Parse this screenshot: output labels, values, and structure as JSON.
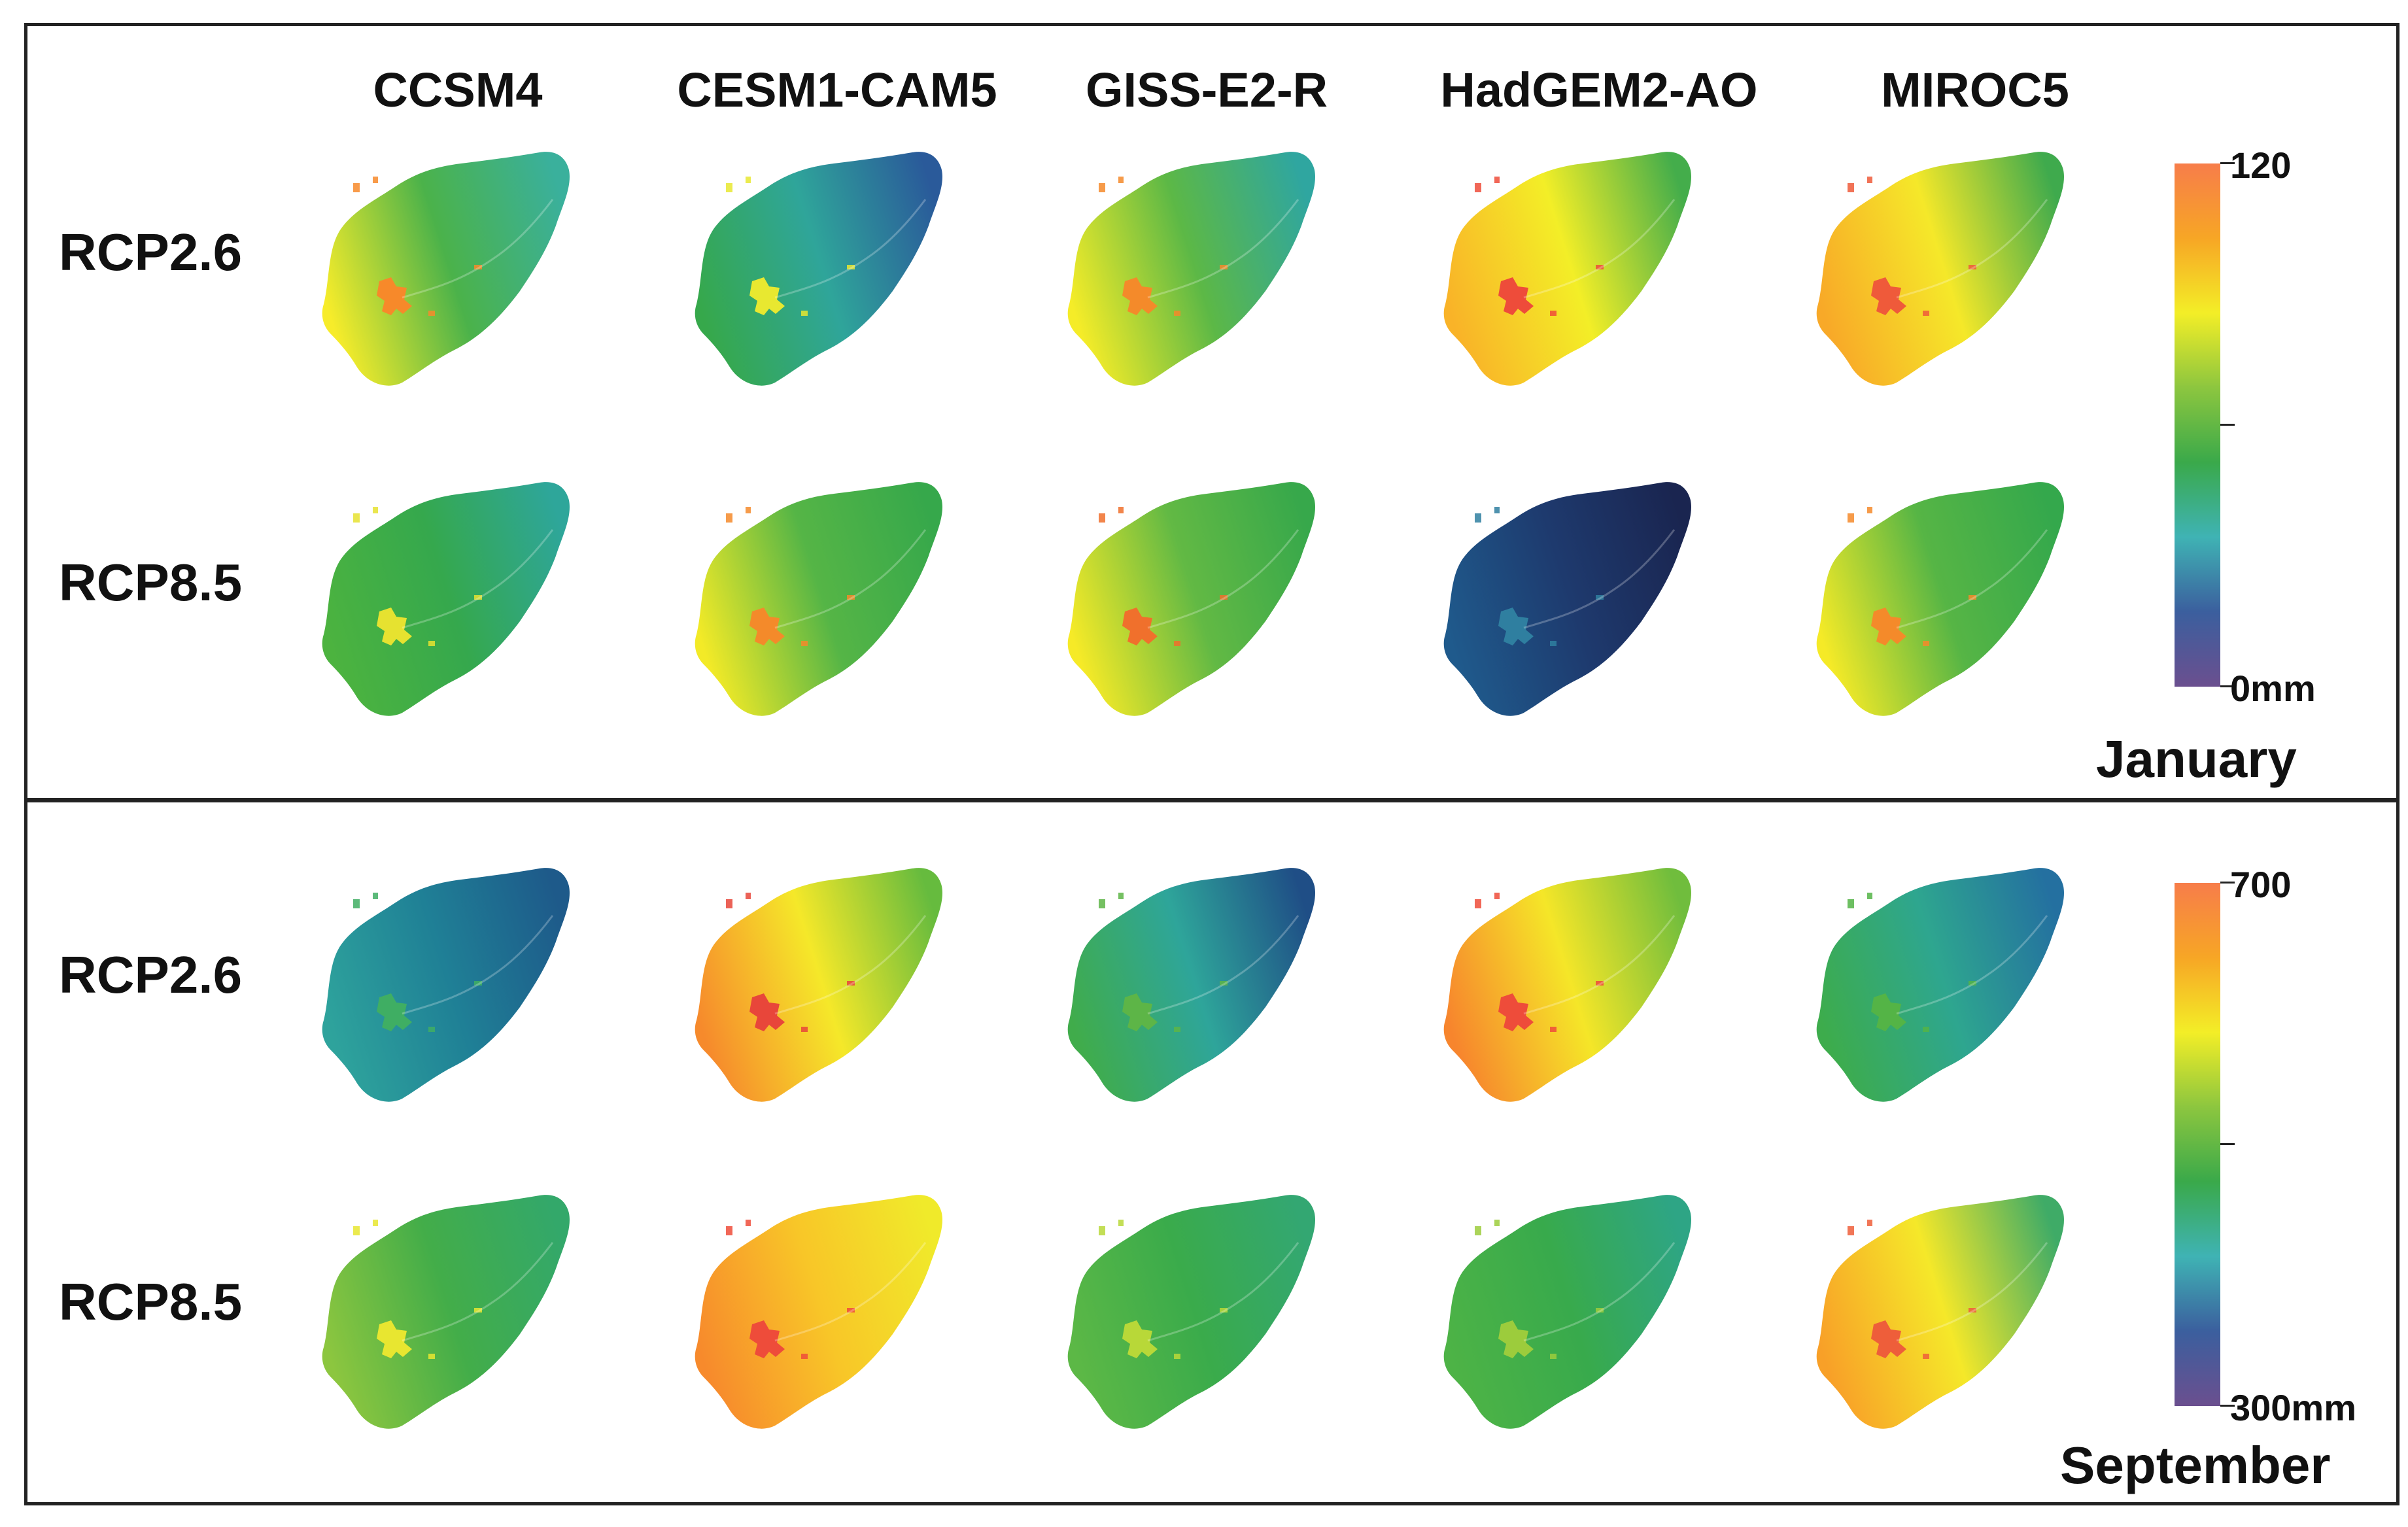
{
  "models": [
    "CCSM4",
    "CESM1-CAM5",
    "GISS-E2-R",
    "HadGEM2-AO",
    "MIROC5"
  ],
  "colormap": [
    "#6b4f8f",
    "#3b5f9e",
    "#3fb3b4",
    "#3aa94a",
    "#8cc63f",
    "#f3ee27",
    "#f7a625",
    "#f77d4a"
  ],
  "panels": [
    {
      "month": "January",
      "colorbar": {
        "max_label": "120",
        "min_label": "0mm",
        "min": 0,
        "max": 120,
        "unit": "mm"
      },
      "rows": [
        {
          "label": "RCP2.6",
          "maps": [
            {
              "model": "CCSM4",
              "west": "#f7ec2a",
              "mid": "#4bb24a",
              "east": "#3ab09c",
              "urban": "#f7892a"
            },
            {
              "model": "CESM1-CAM5",
              "west": "#36a84b",
              "mid": "#2fa59a",
              "east": "#2a5a9a",
              "urban": "#e8e830"
            },
            {
              "model": "GISS-E2-R",
              "west": "#f5ec28",
              "mid": "#5cb846",
              "east": "#2fa6a0",
              "urban": "#f48a2a"
            },
            {
              "model": "HadGEM2-AO",
              "west": "#f9b328",
              "mid": "#f3ee27",
              "east": "#44ad4b",
              "urban": "#ee4c3a"
            },
            {
              "model": "MIROC5",
              "west": "#f8a928",
              "mid": "#f5e829",
              "east": "#3faa4d",
              "urban": "#ef5a3a"
            }
          ]
        },
        {
          "label": "RCP8.5",
          "maps": [
            {
              "model": "CCSM4",
              "west": "#4cb33f",
              "mid": "#35a84d",
              "east": "#2ea69a",
              "urban": "#e6e230"
            },
            {
              "model": "CESM1-CAM5",
              "west": "#f3ea27",
              "mid": "#55b546",
              "east": "#36a84b",
              "urban": "#f48a2a"
            },
            {
              "model": "GISS-E2-R",
              "west": "#f6ea27",
              "mid": "#62b944",
              "east": "#37a84b",
              "urban": "#f0702c"
            },
            {
              "model": "HadGEM2-AO",
              "west": "#1f5a8c",
              "mid": "#1e3a6e",
              "east": "#1a2550",
              "urban": "#2f7fa0"
            },
            {
              "model": "MIROC5",
              "west": "#f5ea27",
              "mid": "#56b545",
              "east": "#34a84c",
              "urban": "#f48a2a"
            }
          ]
        }
      ]
    },
    {
      "month": "September",
      "colorbar": {
        "max_label": "700",
        "min_label": "300mm",
        "min": 300,
        "max": 700,
        "unit": "mm"
      },
      "rows": [
        {
          "label": "RCP2.6",
          "maps": [
            {
              "model": "CCSM4",
              "west": "#2ea39c",
              "mid": "#1f8096",
              "east": "#1e5a8a",
              "urban": "#3fae63"
            },
            {
              "model": "CESM1-CAM5",
              "west": "#f68a2c",
              "mid": "#f5e829",
              "east": "#66bb3e",
              "urban": "#e8463a"
            },
            {
              "model": "GISS-E2-R",
              "west": "#40ac4b",
              "mid": "#2ea59a",
              "east": "#1f4e86",
              "urban": "#5db547"
            },
            {
              "model": "HadGEM2-AO",
              "west": "#f7852d",
              "mid": "#f5e628",
              "east": "#70bd3d",
              "urban": "#ee4c3a"
            },
            {
              "model": "MIROC5",
              "west": "#3dac4c",
              "mid": "#2ea68f",
              "east": "#2470a0",
              "urban": "#54b446"
            }
          ]
        },
        {
          "label": "RCP8.5",
          "maps": [
            {
              "model": "CCSM4",
              "west": "#8cc63f",
              "mid": "#43ad49",
              "east": "#33a86a",
              "urban": "#e8e630"
            },
            {
              "model": "CESM1-CAM5",
              "west": "#f78a2c",
              "mid": "#f8c628",
              "east": "#f0ea2a",
              "urban": "#ee4c3a"
            },
            {
              "model": "GISS-E2-R",
              "west": "#5cb846",
              "mid": "#3aab4b",
              "east": "#33a772",
              "urban": "#b8d838"
            },
            {
              "model": "HadGEM2-AO",
              "west": "#4db346",
              "mid": "#38aa4c",
              "east": "#2ea585",
              "urban": "#9ccc3c"
            },
            {
              "model": "MIROC5",
              "west": "#f8a028",
              "mid": "#f5e829",
              "east": "#3fab67",
              "urban": "#ee5e3a"
            }
          ]
        }
      ]
    }
  ]
}
